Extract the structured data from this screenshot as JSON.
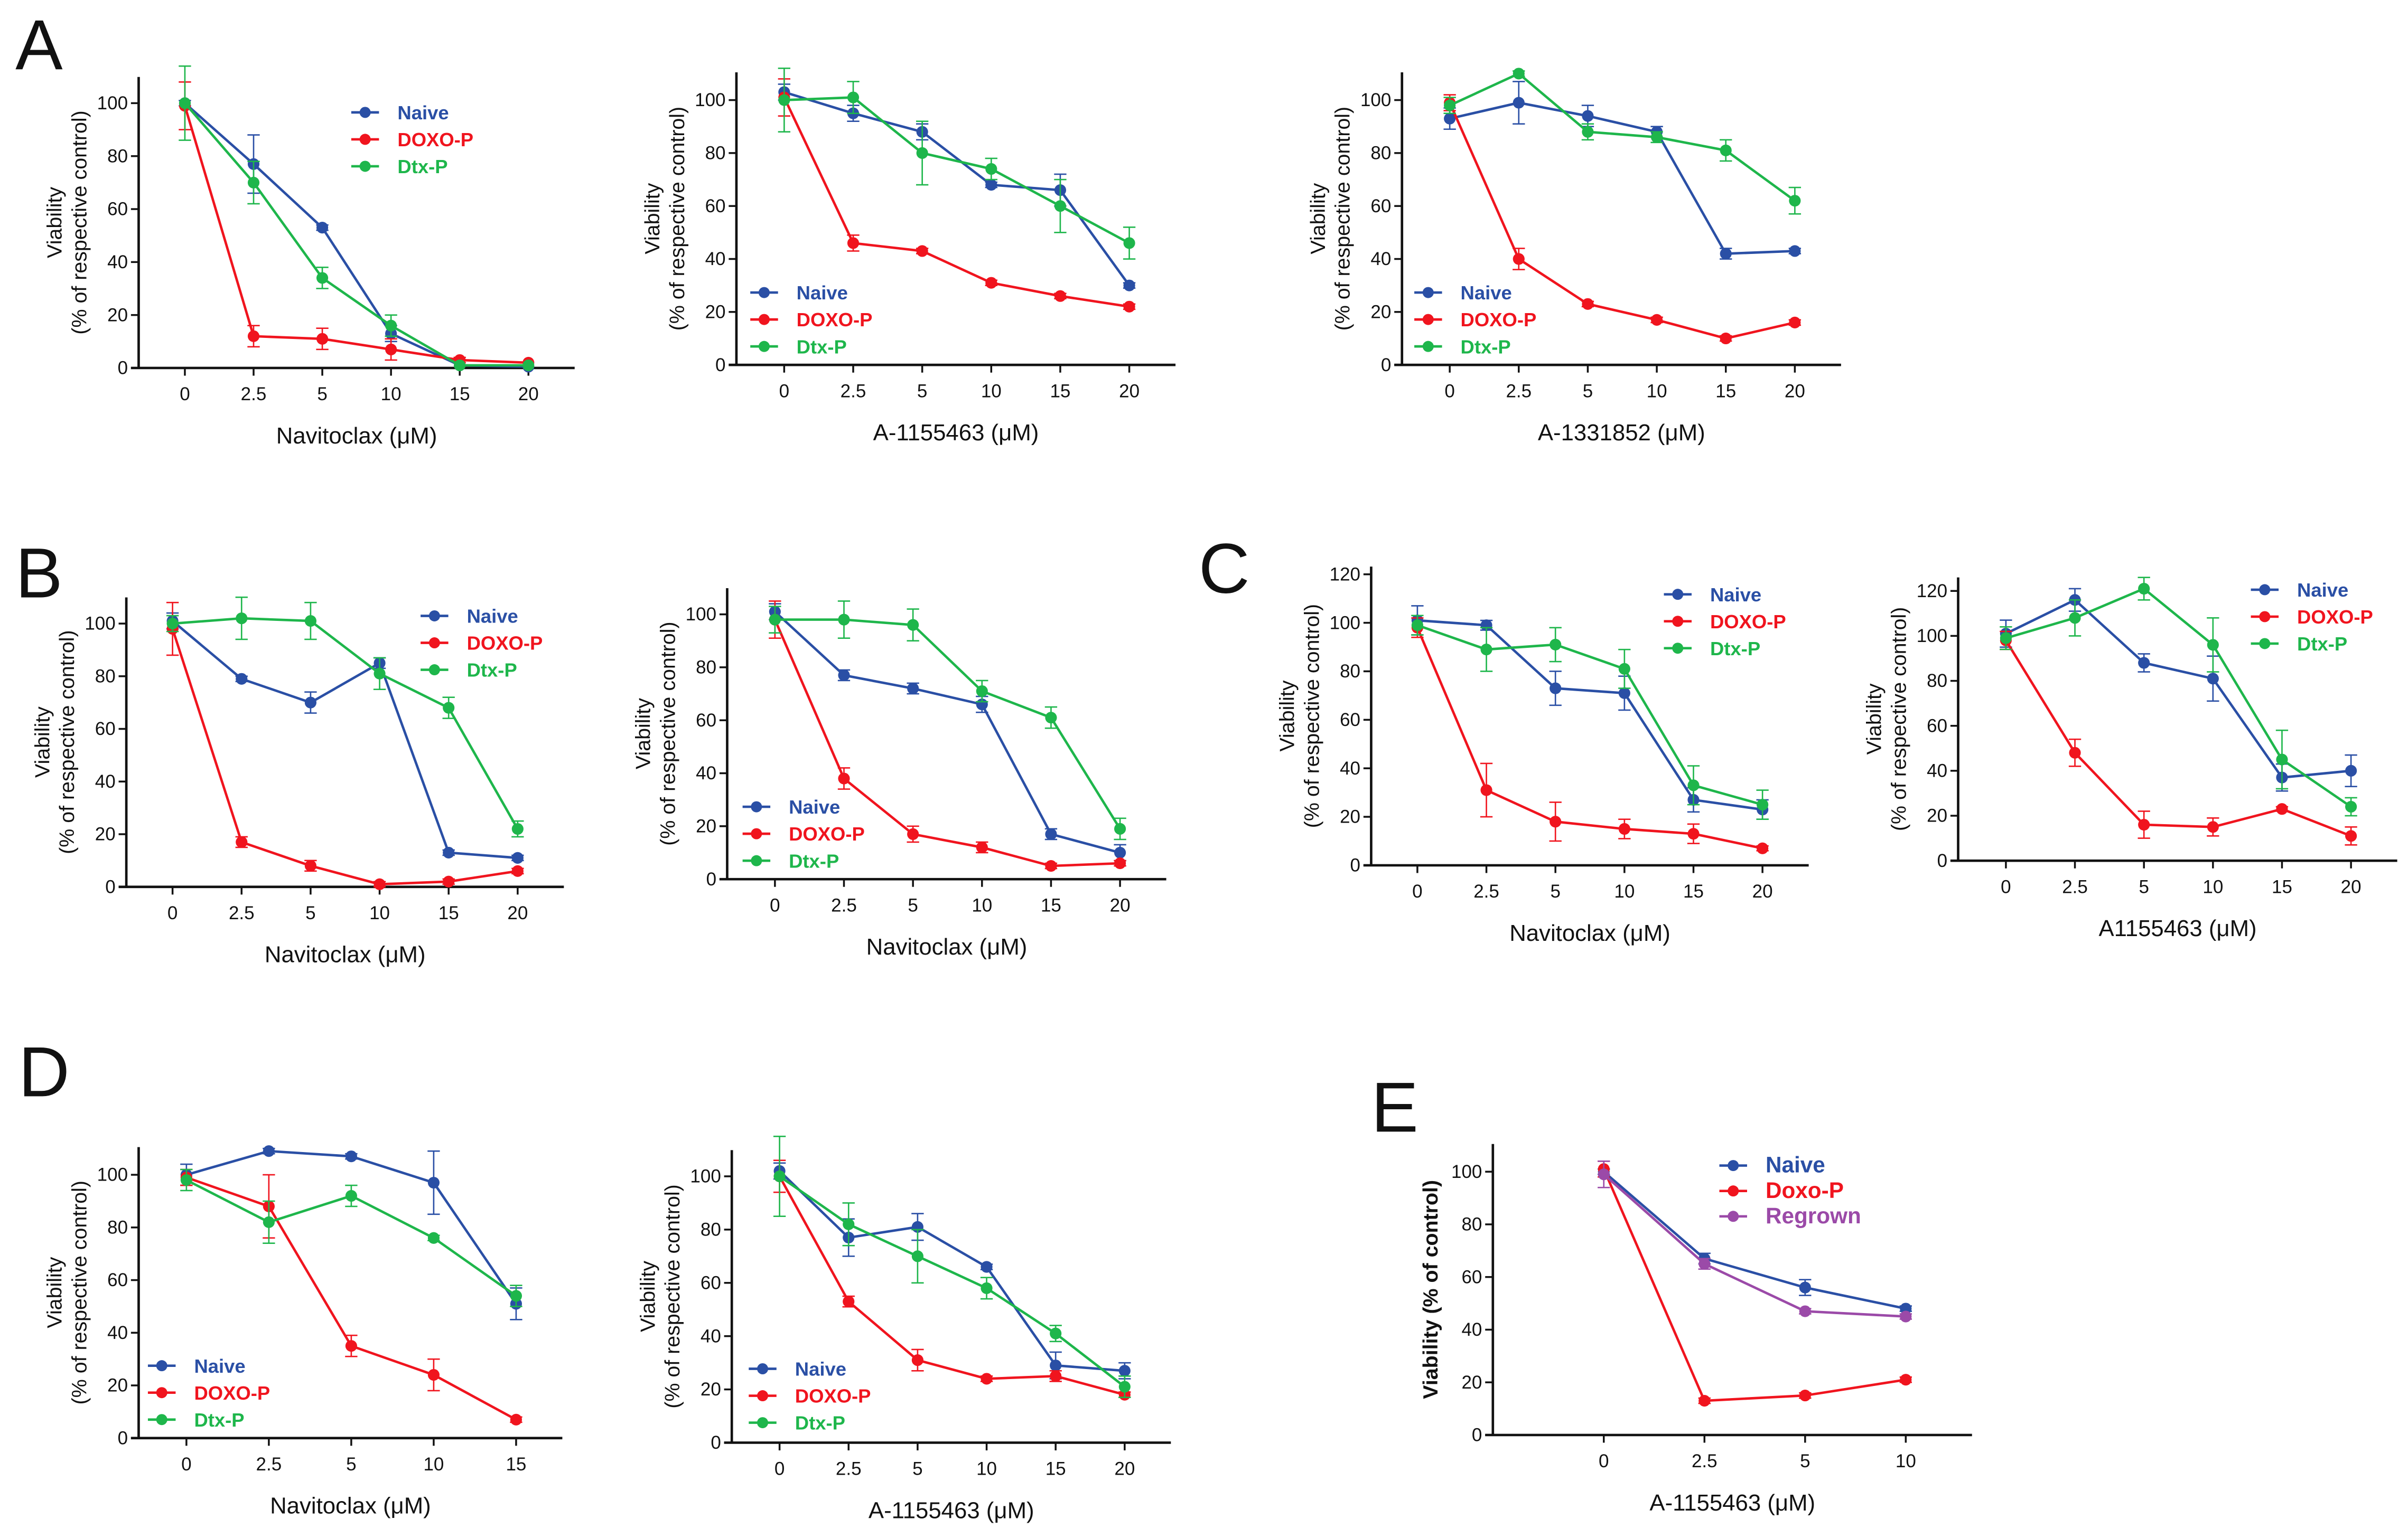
{
  "panel_labels": [
    "A",
    "B",
    "C",
    "D",
    "E"
  ],
  "colors": {
    "naive": "#2a4fa5",
    "doxo": "#f0141e",
    "dtx": "#1eb64b",
    "regrown": "#9b4aa8",
    "axis": "#111111"
  },
  "chart_data": [
    {
      "id": "A1",
      "panel": "A",
      "type": "line",
      "xlabel": "Navitoclax (μM)",
      "ylabel": [
        "Viability",
        "(% of respective control)"
      ],
      "categories": [
        "0",
        "2.5",
        "5",
        "10",
        "15",
        "20"
      ],
      "ylim": [
        0,
        110
      ],
      "yticks": [
        0,
        20,
        40,
        60,
        80,
        100
      ],
      "legend": "top-right",
      "grid": false,
      "series": [
        {
          "name": "Naive",
          "color": "#2a4fa5",
          "values": [
            100,
            77,
            53,
            13,
            1,
            0.5
          ],
          "err": [
            1,
            11,
            1,
            3,
            0,
            0
          ]
        },
        {
          "name": "DOXO-P",
          "color": "#f0141e",
          "values": [
            99,
            12,
            11,
            7,
            3,
            2
          ],
          "err": [
            9,
            4,
            4,
            4,
            1,
            0
          ]
        },
        {
          "name": "Dtx-P",
          "color": "#1eb64b",
          "values": [
            100,
            70,
            34,
            16,
            1,
            1
          ],
          "err": [
            14,
            8,
            4,
            4,
            0,
            0
          ]
        }
      ]
    },
    {
      "id": "A2",
      "panel": "A",
      "type": "line",
      "xlabel": "A-1155463 (μM)",
      "ylabel": [
        "Viability",
        "(% of respective control)"
      ],
      "categories": [
        "0",
        "2.5",
        "5",
        "10",
        "15",
        "20"
      ],
      "ylim": [
        0,
        110
      ],
      "yticks": [
        0,
        20,
        40,
        60,
        80,
        100
      ],
      "legend": "bottom-left",
      "grid": false,
      "series": [
        {
          "name": "Naive",
          "color": "#2a4fa5",
          "values": [
            103,
            95,
            88,
            68,
            66,
            30
          ],
          "err": [
            3,
            3,
            3,
            1,
            6,
            1
          ]
        },
        {
          "name": "DOXO-P",
          "color": "#f0141e",
          "values": [
            101,
            46,
            43,
            31,
            26,
            22
          ],
          "err": [
            7,
            3,
            1,
            1,
            1,
            1
          ]
        },
        {
          "name": "Dtx-P",
          "color": "#1eb64b",
          "values": [
            100,
            101,
            80,
            74,
            60,
            46
          ],
          "err": [
            12,
            6,
            12,
            4,
            10,
            6
          ]
        }
      ]
    },
    {
      "id": "A3",
      "panel": "A",
      "type": "line",
      "xlabel": "A-1331852 (μM)",
      "ylabel": [
        "Viability",
        "(% of respective control)"
      ],
      "categories": [
        "0",
        "2.5",
        "5",
        "10",
        "15",
        "20"
      ],
      "ylim": [
        0,
        110
      ],
      "yticks": [
        0,
        20,
        40,
        60,
        80,
        100
      ],
      "legend": "bottom-left",
      "grid": false,
      "series": [
        {
          "name": "Naive",
          "color": "#2a4fa5",
          "values": [
            93,
            99,
            94,
            88,
            42,
            43
          ],
          "err": [
            4,
            8,
            4,
            2,
            2,
            1
          ]
        },
        {
          "name": "DOXO-P",
          "color": "#f0141e",
          "values": [
            99,
            40,
            23,
            17,
            10,
            16
          ],
          "err": [
            3,
            4,
            1,
            1,
            1,
            1
          ]
        },
        {
          "name": "Dtx-P",
          "color": "#1eb64b",
          "values": [
            98,
            110,
            88,
            86,
            81,
            62
          ],
          "err": [
            3,
            1,
            3,
            2,
            4,
            5
          ]
        }
      ]
    },
    {
      "id": "B1",
      "panel": "B",
      "type": "line",
      "xlabel": "Navitoclax (μM)",
      "ylabel": [
        "Viability",
        "(% of respective control)"
      ],
      "categories": [
        "0",
        "2.5",
        "5",
        "10",
        "15",
        "20"
      ],
      "ylim": [
        0,
        110
      ],
      "yticks": [
        0,
        20,
        40,
        60,
        80,
        100
      ],
      "legend": "top-right",
      "grid": false,
      "series": [
        {
          "name": "Naive",
          "color": "#2a4fa5",
          "values": [
            101,
            79,
            70,
            85,
            13,
            11
          ],
          "err": [
            3,
            1,
            4,
            2,
            1,
            1
          ]
        },
        {
          "name": "DOXO-P",
          "color": "#f0141e",
          "values": [
            98,
            17,
            8,
            1,
            2,
            6
          ],
          "err": [
            10,
            2,
            2,
            1,
            1,
            1
          ]
        },
        {
          "name": "Dtx-P",
          "color": "#1eb64b",
          "values": [
            100,
            102,
            101,
            81,
            68,
            22
          ],
          "err": [
            3,
            8,
            7,
            6,
            4,
            3
          ]
        }
      ]
    },
    {
      "id": "B2",
      "panel": "B",
      "type": "line",
      "xlabel": "Navitoclax (μM)",
      "ylabel": [
        "Viability",
        "(% of respective control)"
      ],
      "categories": [
        "0",
        "2.5",
        "5",
        "10",
        "15",
        "20"
      ],
      "ylim": [
        0,
        110
      ],
      "yticks": [
        0,
        20,
        40,
        60,
        80,
        100
      ],
      "legend": "bottom-left",
      "grid": false,
      "series": [
        {
          "name": "Naive",
          "color": "#2a4fa5",
          "values": [
            101,
            77,
            72,
            66,
            17,
            10
          ],
          "err": [
            3,
            2,
            2,
            3,
            2,
            3
          ]
        },
        {
          "name": "DOXO-P",
          "color": "#f0141e",
          "values": [
            98,
            38,
            17,
            12,
            5,
            6
          ],
          "err": [
            7,
            4,
            3,
            2,
            1,
            1
          ]
        },
        {
          "name": "Dtx-P",
          "color": "#1eb64b",
          "values": [
            98,
            98,
            96,
            71,
            61,
            19
          ],
          "err": [
            5,
            7,
            6,
            4,
            4,
            4
          ]
        }
      ]
    },
    {
      "id": "C1",
      "panel": "C",
      "type": "line",
      "xlabel": "Navitoclax (μM)",
      "ylabel": [
        "Viability",
        "(% of respective control)"
      ],
      "categories": [
        "0",
        "2.5",
        "5",
        "10",
        "15",
        "20"
      ],
      "ylim": [
        0,
        125
      ],
      "yticks": [
        0,
        20,
        40,
        60,
        80,
        100,
        120
      ],
      "legend": "top-right",
      "grid": false,
      "series": [
        {
          "name": "Naive",
          "color": "#2a4fa5",
          "values": [
            101,
            99,
            73,
            71,
            27,
            23
          ],
          "err": [
            6,
            2,
            7,
            7,
            5,
            4
          ]
        },
        {
          "name": "DOXO-P",
          "color": "#f0141e",
          "values": [
            98,
            31,
            18,
            15,
            13,
            7
          ],
          "err": [
            4,
            11,
            8,
            4,
            4,
            1
          ]
        },
        {
          "name": "Dtx-P",
          "color": "#1eb64b",
          "values": [
            99,
            89,
            91,
            81,
            33,
            25
          ],
          "err": [
            4,
            9,
            7,
            8,
            8,
            6
          ]
        }
      ]
    },
    {
      "id": "C2",
      "panel": "C",
      "type": "line",
      "xlabel": "A1155463 (μM)",
      "ylabel": [
        "Viability",
        "(% of respective control)"
      ],
      "categories": [
        "0",
        "2.5",
        "5",
        "10",
        "15",
        "20"
      ],
      "ylim": [
        0,
        130
      ],
      "yticks": [
        0,
        20,
        40,
        60,
        80,
        100,
        120
      ],
      "legend": "top-right",
      "grid": false,
      "series": [
        {
          "name": "Naive",
          "color": "#2a4fa5",
          "values": [
            101,
            116,
            88,
            81,
            37,
            40
          ],
          "err": [
            6,
            5,
            4,
            10,
            6,
            7
          ]
        },
        {
          "name": "DOXO-P",
          "color": "#f0141e",
          "values": [
            98,
            48,
            16,
            15,
            23,
            11
          ],
          "err": [
            4,
            6,
            6,
            4,
            1,
            4
          ]
        },
        {
          "name": "Dtx-P",
          "color": "#1eb64b",
          "values": [
            99,
            108,
            121,
            96,
            45,
            24
          ],
          "err": [
            5,
            8,
            5,
            12,
            13,
            4
          ]
        }
      ]
    },
    {
      "id": "D1",
      "panel": "D",
      "type": "line",
      "xlabel": "Navitoclax (μM)",
      "ylabel": [
        "Viability",
        "(% of respective control)"
      ],
      "categories": [
        "0",
        "2.5",
        "5",
        "10",
        "15"
      ],
      "ylim": [
        0,
        110
      ],
      "yticks": [
        0,
        20,
        40,
        60,
        80,
        100
      ],
      "legend": "bottom-left",
      "grid": false,
      "series": [
        {
          "name": "Naive",
          "color": "#2a4fa5",
          "values": [
            100,
            109,
            107,
            97,
            51
          ],
          "err": [
            4,
            1,
            1,
            12,
            6
          ]
        },
        {
          "name": "DOXO-P",
          "color": "#f0141e",
          "values": [
            99,
            88,
            35,
            24,
            7
          ],
          "err": [
            3,
            12,
            4,
            6,
            1
          ]
        },
        {
          "name": "Dtx-P",
          "color": "#1eb64b",
          "values": [
            98,
            82,
            92,
            76,
            54
          ],
          "err": [
            4,
            8,
            4,
            1,
            4
          ]
        }
      ]
    },
    {
      "id": "D2",
      "panel": "D",
      "type": "line",
      "xlabel": "A-1155463 (μM)",
      "ylabel": [
        "Viability",
        "(% of respective control)"
      ],
      "categories": [
        "0",
        "2.5",
        "5",
        "10",
        "15",
        "20"
      ],
      "ylim": [
        0,
        110
      ],
      "yticks": [
        0,
        20,
        40,
        60,
        80,
        100
      ],
      "legend": "bottom-left",
      "grid": false,
      "series": [
        {
          "name": "Naive",
          "color": "#2a4fa5",
          "values": [
            102,
            77,
            81,
            66,
            29,
            27
          ],
          "err": [
            3,
            7,
            5,
            1,
            5,
            3
          ]
        },
        {
          "name": "DOXO-P",
          "color": "#f0141e",
          "values": [
            100,
            53,
            31,
            24,
            25,
            18
          ],
          "err": [
            6,
            2,
            4,
            1,
            2,
            1
          ]
        },
        {
          "name": "Dtx-P",
          "color": "#1eb64b",
          "values": [
            100,
            82,
            70,
            58,
            41,
            21
          ],
          "err": [
            15,
            8,
            10,
            4,
            3,
            4
          ]
        }
      ]
    },
    {
      "id": "E",
      "panel": "E",
      "type": "line",
      "xlabel": "A-1155463 (μM)",
      "ylabel": [
        "Viability (% of control)"
      ],
      "categories": [
        "0",
        "2.5",
        "5",
        "10"
      ],
      "ylim": [
        0,
        110
      ],
      "yticks": [
        0,
        20,
        40,
        60,
        80,
        100
      ],
      "legend": "top-right",
      "grid": false,
      "series": [
        {
          "name": "Naive",
          "color": "#2a4fa5",
          "values": [
            100,
            67,
            56,
            48
          ],
          "err": [
            1,
            2,
            3,
            1
          ]
        },
        {
          "name": "Doxo-P",
          "color": "#f0141e",
          "values": [
            101,
            13,
            15,
            21
          ],
          "err": [
            3,
            1,
            1,
            1
          ]
        },
        {
          "name": "Regrown",
          "color": "#9b4aa8",
          "values": [
            99,
            65,
            47,
            45
          ],
          "err": [
            5,
            2,
            1,
            1
          ]
        }
      ]
    }
  ]
}
